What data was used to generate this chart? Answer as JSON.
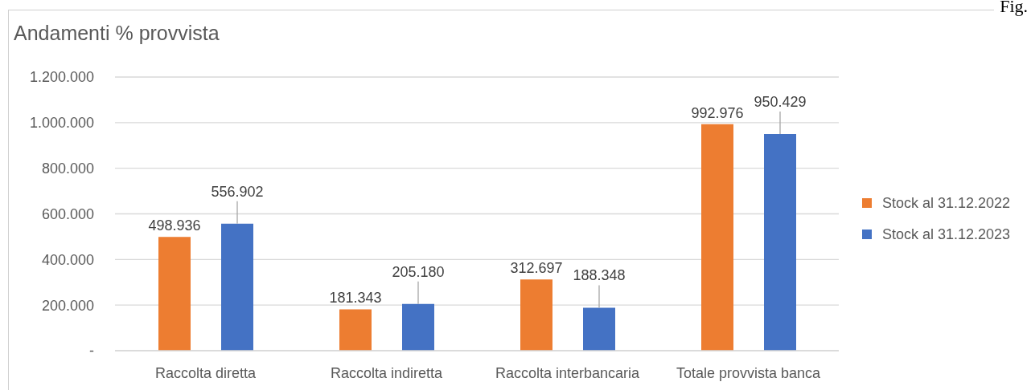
{
  "chart_data": {
    "type": "bar",
    "title": "Andamenti % provvista",
    "categories": [
      "Raccolta diretta",
      "Raccolta indiretta",
      "Raccolta interbancaria",
      "Totale provvista banca"
    ],
    "series": [
      {
        "name": "Stock al 31.12.2022",
        "color": "#ed7d31",
        "values": [
          498936,
          181343,
          312697,
          992976
        ],
        "value_labels": [
          "498.936",
          "181.343",
          "312.697",
          "992.976"
        ]
      },
      {
        "name": "Stock al 31.12.2023",
        "color": "#4472c4",
        "values": [
          556902,
          205180,
          188348,
          950429
        ],
        "value_labels": [
          "556.902",
          "205.180",
          "188.348",
          "950.429"
        ]
      }
    ],
    "ylim": [
      0,
      1200000
    ],
    "yticks": [
      {
        "value": 0,
        "label": "-"
      },
      {
        "value": 200000,
        "label": "200.000"
      },
      {
        "value": 400000,
        "label": "400.000"
      },
      {
        "value": 600000,
        "label": "600.000"
      },
      {
        "value": 800000,
        "label": "800.000"
      },
      {
        "value": 1000000,
        "label": "1.000.000"
      },
      {
        "value": 1200000,
        "label": "1.200.000"
      }
    ],
    "grid": "y",
    "legend": "right",
    "annotations": [
      "Fig."
    ]
  }
}
